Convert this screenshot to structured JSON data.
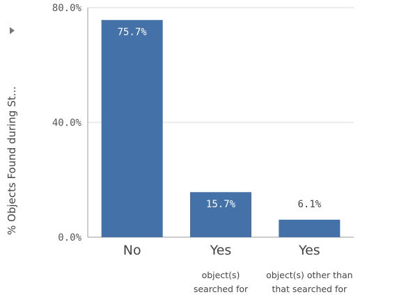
{
  "chart_data": {
    "type": "bar",
    "ylabel": "% Objects Found during St...",
    "ylim": [
      0,
      80
    ],
    "yticks": [
      "0.0%",
      "40.0%",
      "80.0%"
    ],
    "categories": [
      {
        "label": "No",
        "sublabel": []
      },
      {
        "label": "Yes",
        "sublabel": [
          "object(s)",
          "searched for"
        ]
      },
      {
        "label": "Yes",
        "sublabel": [
          "object(s) other than",
          "that searched for"
        ]
      }
    ],
    "values": [
      75.7,
      15.7,
      6.1
    ],
    "data_labels": [
      "75.7%",
      "15.7%",
      "6.1%"
    ],
    "colors": {
      "bar": "#4472a8",
      "grid": "#d9d9d9",
      "axis": "#9a9a9a",
      "collapse_icon": "#777777"
    },
    "grid": true
  }
}
